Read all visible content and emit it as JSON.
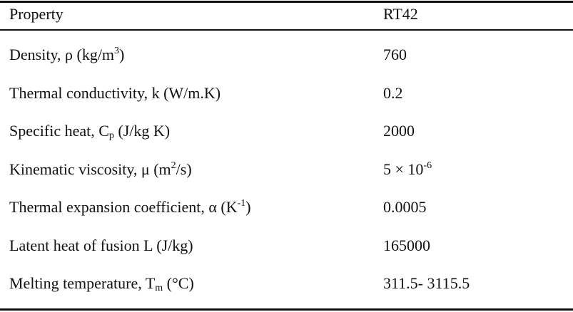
{
  "table": {
    "header": [
      "Property",
      "RT42"
    ],
    "rows": [
      [
        [
          "Density, ρ (kg/m",
          {
            "sup": "3"
          },
          ")"
        ],
        [
          "760"
        ]
      ],
      [
        [
          "Thermal conductivity, k (W/m.K)"
        ],
        [
          "0.2"
        ]
      ],
      [
        [
          "Specific heat, C",
          {
            "sub": "p"
          },
          " (J/kg K)"
        ],
        [
          "2000"
        ]
      ],
      [
        [
          "Kinematic viscosity, μ (m",
          {
            "sup": "2"
          },
          "/s)"
        ],
        [
          "5 × 10",
          {
            "sup": "-6"
          }
        ]
      ],
      [
        [
          "Thermal expansion coefficient, α (K",
          {
            "sup": "-1"
          },
          ")"
        ],
        [
          "0.0005"
        ]
      ],
      [
        [
          "Latent heat of fusion L (J/kg)"
        ],
        [
          "165000"
        ]
      ],
      [
        [
          "Melting temperature, T",
          {
            "sub": "m"
          },
          " (°C)"
        ],
        [
          "311.5- 3115.5"
        ]
      ]
    ]
  }
}
